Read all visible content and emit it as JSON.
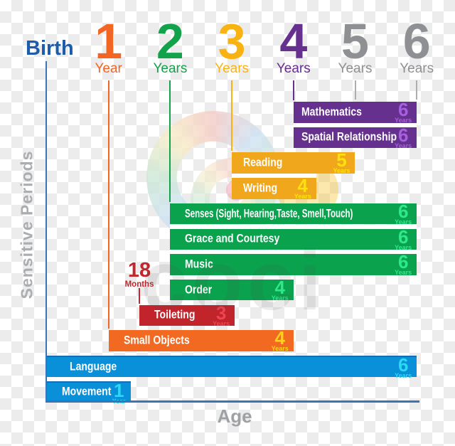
{
  "header": {
    "origin_label": "Birth",
    "origin_hex": "#1c5ca8",
    "ticks": [
      {
        "number": "1",
        "unit": "Year",
        "hex": "#f26522"
      },
      {
        "number": "2",
        "unit": "Years",
        "hex": "#13a24c"
      },
      {
        "number": "3",
        "unit": "Years",
        "hex": "#f8b312"
      },
      {
        "number": "4",
        "unit": "Years",
        "hex": "#66308f"
      },
      {
        "number": "5",
        "unit": "Years",
        "hex": "#8f9093"
      },
      {
        "number": "6",
        "unit": "Years",
        "hex": "#8f9093"
      }
    ]
  },
  "marker_18_months": {
    "number": "18",
    "unit": "Months",
    "age_years": 1.5,
    "hex": "#c1272d"
  },
  "axis": {
    "line_hex": "#3b74b4",
    "x_label_hex": "#9fa1a4",
    "y_label_hex": "#abadb0",
    "gray_tick_line_hex": "#aeaeb1"
  },
  "watermark": {
    "text": "coci"
  },
  "chart_data": {
    "type": "bar",
    "orientation": "horizontal",
    "xlabel": "Age",
    "ylabel": "Sensitive Periods",
    "xlim_years": [
      0,
      6
    ],
    "x_tick_labels": [
      "Birth",
      "1 Year",
      "2 Years",
      "3 Years",
      "4 Years",
      "5 Years",
      "6 Years"
    ],
    "bars": [
      {
        "label": "Mathematics",
        "start_years": 4,
        "end_years": 6,
        "value": "6",
        "unit": "Years",
        "bar_hex": "#66308f",
        "value_hex": "#a75fe0"
      },
      {
        "label": "Spatial Relationship",
        "start_years": 4,
        "end_years": 6,
        "value": "6",
        "unit": "Years",
        "bar_hex": "#66308f",
        "value_hex": "#a75fe0"
      },
      {
        "label": "Reading",
        "start_years": 3,
        "end_years": 5,
        "value": "5",
        "unit": "Years",
        "bar_hex": "#f0a71c",
        "value_hex": "#ffe20a"
      },
      {
        "label": "Writing",
        "start_years": 3,
        "end_years": 4,
        "value": "4",
        "unit": "Years",
        "bar_hex": "#f0a71c",
        "value_hex": "#ffe20a"
      },
      {
        "label": "Senses (Sight, Hearing,Taste, Smell,Touch)",
        "start_years": 2,
        "end_years": 6,
        "value": "6",
        "unit": "Years",
        "bar_hex": "#0ba24e",
        "value_hex": "#2ee88c"
      },
      {
        "label": "Grace and Courtesy",
        "start_years": 2,
        "end_years": 6,
        "value": "6",
        "unit": "Years",
        "bar_hex": "#0ba24e",
        "value_hex": "#2ee88c"
      },
      {
        "label": "Music",
        "start_years": 2,
        "end_years": 6,
        "value": "6",
        "unit": "Years",
        "bar_hex": "#0ba24e",
        "value_hex": "#2ee88c"
      },
      {
        "label": "Order",
        "start_years": 2,
        "end_years": 4,
        "value": "4",
        "unit": "Years",
        "bar_hex": "#0ba24e",
        "value_hex": "#2ee88c"
      },
      {
        "label": "Toileting",
        "start_years": 1.5,
        "end_years": 3,
        "value": "3",
        "unit": "Years",
        "bar_hex": "#c2242c",
        "value_hex": "#f04455"
      },
      {
        "label": "Small Objects",
        "start_years": 1,
        "end_years": 4,
        "value": "4",
        "unit": "Years",
        "bar_hex": "#f26a21",
        "value_hex": "#ffd21c"
      },
      {
        "label": "Language",
        "start_years": 0,
        "end_years": 6,
        "value": "6",
        "unit": "Years",
        "bar_hex": "#0a90d8",
        "value_hex": "#2bd9f5"
      },
      {
        "label": "Movement",
        "start_years": 0,
        "end_years": 1,
        "value": "1",
        "unit": "Year",
        "bar_hex": "#0a90d8",
        "value_hex": "#2bd9f5"
      }
    ]
  }
}
